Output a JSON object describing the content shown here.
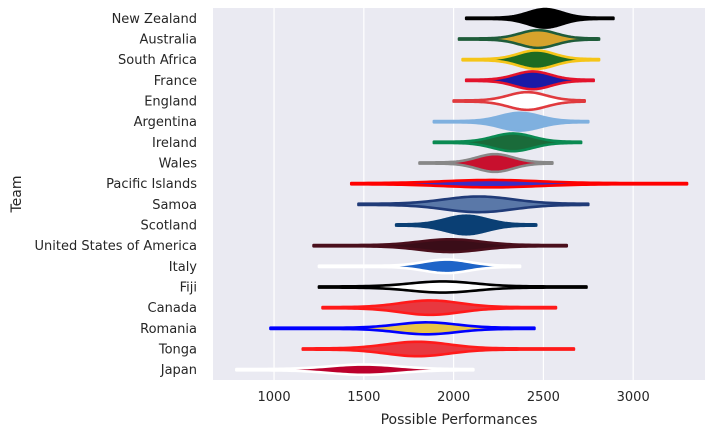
{
  "chart_data": {
    "type": "violin",
    "orientation": "horizontal",
    "xlabel": "Possible Performances",
    "ylabel": "Team",
    "xlim": [
      660,
      3400
    ],
    "xticks": [
      1000,
      1500,
      2000,
      2500,
      3000
    ],
    "xtick_labels": [
      "1000",
      "1500",
      "2000",
      "2500",
      "3000"
    ],
    "grid": true,
    "background": "#eaeaf2",
    "grid_color": "#ffffff",
    "text_color": "#262626",
    "teams": [
      {
        "name": "New Zealand",
        "min": 2070,
        "max": 2890,
        "center": 2510,
        "spread": 95,
        "width": 0.42,
        "fill": "#000000",
        "edge": "#000000"
      },
      {
        "name": "Australia",
        "min": 2030,
        "max": 2810,
        "center": 2470,
        "spread": 100,
        "width": 0.4,
        "fill": "#d7a32c",
        "edge": "#1f5c3a"
      },
      {
        "name": "South Africa",
        "min": 2050,
        "max": 2810,
        "center": 2460,
        "spread": 100,
        "width": 0.42,
        "fill": "#1d6b22",
        "edge": "#f5c518"
      },
      {
        "name": "France",
        "min": 2070,
        "max": 2780,
        "center": 2440,
        "spread": 100,
        "width": 0.4,
        "fill": "#1a1aa6",
        "edge": "#e3132c"
      },
      {
        "name": "England",
        "min": 2000,
        "max": 2730,
        "center": 2410,
        "spread": 105,
        "width": 0.4,
        "fill": "#ffffff",
        "edge": "#e03a3e"
      },
      {
        "name": "Argentina",
        "min": 1890,
        "max": 2750,
        "center": 2370,
        "spread": 110,
        "width": 0.4,
        "fill": "#7fb0df",
        "edge": "#7fb0df"
      },
      {
        "name": "Ireland",
        "min": 1890,
        "max": 2710,
        "center": 2330,
        "spread": 110,
        "width": 0.4,
        "fill": "#1a6b3a",
        "edge": "#0a8a52"
      },
      {
        "name": "Wales",
        "min": 1810,
        "max": 2550,
        "center": 2230,
        "spread": 100,
        "width": 0.4,
        "fill": "#c8102e",
        "edge": "#888888"
      },
      {
        "name": "Pacific Islands",
        "min": 1430,
        "max": 3300,
        "center": 2210,
        "spread": 260,
        "width": 0.15,
        "fill": "#3b2bc4",
        "edge": "#ff0000"
      },
      {
        "name": "Samoa",
        "min": 1470,
        "max": 2750,
        "center": 2140,
        "spread": 190,
        "width": 0.35,
        "fill": "#5a78a8",
        "edge": "#203b78"
      },
      {
        "name": "Scotland",
        "min": 1680,
        "max": 2460,
        "center": 2070,
        "spread": 115,
        "width": 0.42,
        "fill": "#0a3f74",
        "edge": "#0a3f74"
      },
      {
        "name": "United States of America",
        "min": 1220,
        "max": 2630,
        "center": 1980,
        "spread": 170,
        "width": 0.28,
        "fill": "#3a0d18",
        "edge": "#4a0f1c"
      },
      {
        "name": "Italy",
        "min": 1250,
        "max": 2370,
        "center": 1960,
        "spread": 125,
        "width": 0.3,
        "fill": "#1e64c8",
        "edge": "#ffffff"
      },
      {
        "name": "Fiji",
        "min": 1250,
        "max": 2740,
        "center": 1940,
        "spread": 180,
        "width": 0.24,
        "fill": "#ffffff",
        "edge": "#000000"
      },
      {
        "name": "Canada",
        "min": 1270,
        "max": 2570,
        "center": 1870,
        "spread": 165,
        "width": 0.32,
        "fill": "#e8383f",
        "edge": "#ff1a1a"
      },
      {
        "name": "Romania",
        "min": 980,
        "max": 2450,
        "center": 1850,
        "spread": 165,
        "width": 0.26,
        "fill": "#e8c545",
        "edge": "#0000ff"
      },
      {
        "name": "Tonga",
        "min": 1160,
        "max": 2670,
        "center": 1800,
        "spread": 175,
        "width": 0.32,
        "fill": "#e8383f",
        "edge": "#ff1a1a"
      },
      {
        "name": "Japan",
        "min": 790,
        "max": 2110,
        "center": 1500,
        "spread": 190,
        "width": 0.22,
        "fill": "#bc002d",
        "edge": "#ffffff"
      }
    ]
  }
}
